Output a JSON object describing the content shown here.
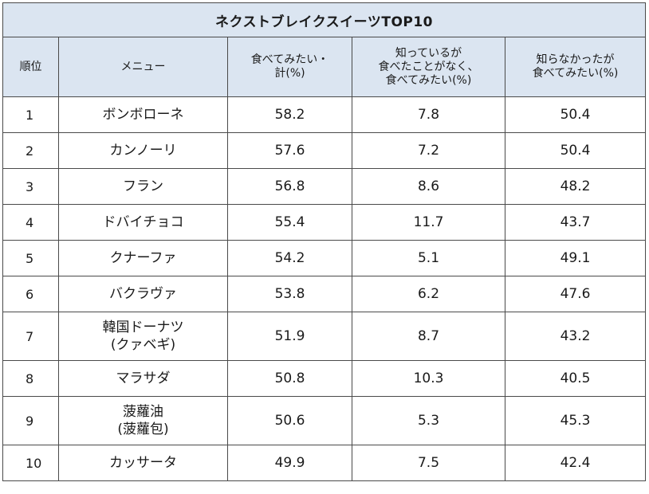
{
  "chart_data": {
    "type": "table",
    "title": "ネクストブレイクスイーツTOP10",
    "columns": [
      "順位",
      "メニュー",
      "食べてみたい・\n計(%)",
      "知っているが\n食べたことがなく、\n食べてみたい(%)",
      "知らなかったが\n食べてみたい(%)"
    ],
    "rows": [
      {
        "rank": "1",
        "menu": "ボンボローネ",
        "total": "58.2",
        "known": "7.8",
        "unknown": "50.4"
      },
      {
        "rank": "2",
        "menu": "カンノーリ",
        "total": "57.6",
        "known": "7.2",
        "unknown": "50.4"
      },
      {
        "rank": "3",
        "menu": "フラン",
        "total": "56.8",
        "known": "8.6",
        "unknown": "48.2"
      },
      {
        "rank": "4",
        "menu": "ドバイチョコ",
        "total": "55.4",
        "known": "11.7",
        "unknown": "43.7"
      },
      {
        "rank": "5",
        "menu": "クナーファ",
        "total": "54.2",
        "known": "5.1",
        "unknown": "49.1"
      },
      {
        "rank": "6",
        "menu": "バクラヴァ",
        "total": "53.8",
        "known": "6.2",
        "unknown": "47.6"
      },
      {
        "rank": "7",
        "menu": "韓国ドーナツ\n(クァベギ)",
        "total": "51.9",
        "known": "8.7",
        "unknown": "43.2"
      },
      {
        "rank": "8",
        "menu": "マラサダ",
        "total": "50.8",
        "known": "10.3",
        "unknown": "40.5"
      },
      {
        "rank": "9",
        "menu": "菠蘿油\n(菠蘿包)",
        "total": "50.6",
        "known": "5.3",
        "unknown": "45.3"
      },
      {
        "rank": "10",
        "menu": "カッサータ",
        "total": "49.9",
        "known": "7.5",
        "unknown": "42.4"
      }
    ]
  }
}
